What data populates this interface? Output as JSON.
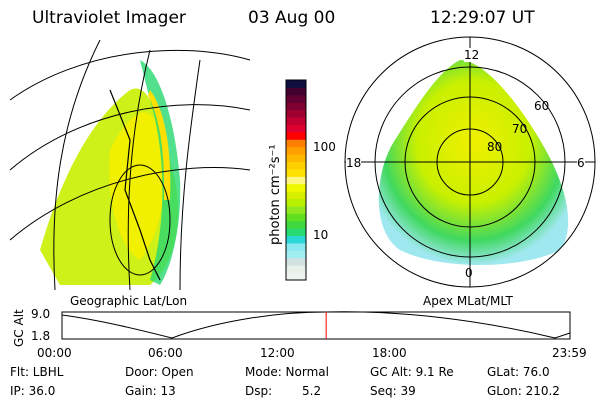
{
  "header": {
    "title": "Ultraviolet Imager",
    "date": "03 Aug 00",
    "time": "12:29:07 UT"
  },
  "left_map": {
    "label": "Geographic Lat/Lon"
  },
  "right_map": {
    "label": "Apex MLat/MLT",
    "mlt_labels": [
      "12",
      "18",
      "6",
      "0"
    ],
    "lat_labels": [
      "60",
      "70",
      "80"
    ]
  },
  "colorbar": {
    "label": "photon cm⁻²s⁻¹",
    "ticks": [
      "100",
      "10"
    ],
    "colors": [
      "#eef4ee",
      "#e8f0ea",
      "#d3e2e0",
      "#a0eef0",
      "#8ae8f0",
      "#2ad8d8",
      "#28d870",
      "#40d840",
      "#60e020",
      "#90e820",
      "#b8f000",
      "#d8f000",
      "#f0f800",
      "#fff880",
      "#ffe000",
      "#ffd000",
      "#ffb800",
      "#ffa000",
      "#ff8000",
      "#ff0000",
      "#e00030",
      "#c00030",
      "#a00030",
      "#800030",
      "#600030",
      "#400030",
      "#101040"
    ]
  },
  "altitude_plot": {
    "ylabel": "GC Alt",
    "yticks": [
      "9.0",
      "1.8"
    ],
    "xticks": [
      "00:00",
      "06:00",
      "12:00",
      "18:00",
      "23:59"
    ],
    "current_time_fraction": 0.52,
    "marker_color": "#ff0000"
  },
  "status": {
    "filter": "Flt: LBHL",
    "ip": "IP: 36.0",
    "door": "Door: Open",
    "gain": "Gain: 13",
    "mode": "Mode: Normal",
    "dsp_label": "Dsp:",
    "dsp_value": "5.2",
    "gc_alt": "GC Alt: 9.1 Re",
    "seq": "Seq: 39",
    "glat": "GLat:  76.0",
    "glon": "GLon: 210.2"
  }
}
